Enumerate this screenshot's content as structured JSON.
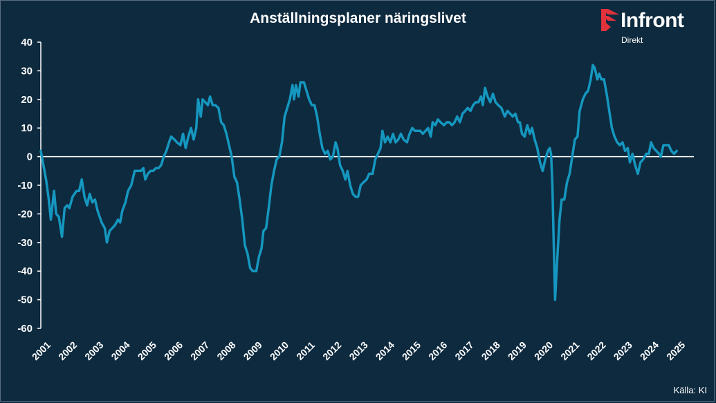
{
  "title": "Anställningsplaner näringslivet",
  "logo": {
    "word": "Infront",
    "sub": "Direkt",
    "icon": "infront-flag-icon",
    "accent": "#e2323c"
  },
  "source": "Källa:  KI",
  "colors": {
    "background": "#0e2a3f",
    "line": "#1597bf",
    "axis": "#ffffff",
    "text": "#ffffff"
  },
  "chart_data": {
    "type": "line",
    "title": "Anställningsplaner näringslivet",
    "xlabel": "",
    "ylabel": "",
    "ylim": [
      -60,
      40
    ],
    "xlim": [
      2001,
      2025.7
    ],
    "yticks": [
      40,
      30,
      20,
      10,
      0,
      -10,
      -20,
      -30,
      -40,
      -50,
      -60
    ],
    "xticks": [
      "2001",
      "2002",
      "2003",
      "2004",
      "2005",
      "2006",
      "2007",
      "2008",
      "2009",
      "2010",
      "2011",
      "2012",
      "2013",
      "2014",
      "2015",
      "2016",
      "2017",
      "2018",
      "2019",
      "2020",
      "2021",
      "2022",
      "2023",
      "2024",
      "2025"
    ],
    "grid": false,
    "legend": "none",
    "series": [
      {
        "name": "",
        "points": [
          [
            2001.0,
            2
          ],
          [
            2001.1,
            -3
          ],
          [
            2001.2,
            -8
          ],
          [
            2001.3,
            -15
          ],
          [
            2001.38,
            -22
          ],
          [
            2001.5,
            -12
          ],
          [
            2001.58,
            -20
          ],
          [
            2001.68,
            -21
          ],
          [
            2001.8,
            -28
          ],
          [
            2001.9,
            -18
          ],
          [
            2002.0,
            -17
          ],
          [
            2002.08,
            -18
          ],
          [
            2002.2,
            -14
          ],
          [
            2002.35,
            -12
          ],
          [
            2002.45,
            -12
          ],
          [
            2002.55,
            -8
          ],
          [
            2002.65,
            -14
          ],
          [
            2002.75,
            -17
          ],
          [
            2002.85,
            -13
          ],
          [
            2002.95,
            -16
          ],
          [
            2003.05,
            -15
          ],
          [
            2003.15,
            -19
          ],
          [
            2003.3,
            -23
          ],
          [
            2003.42,
            -25
          ],
          [
            2003.5,
            -30
          ],
          [
            2003.6,
            -26
          ],
          [
            2003.7,
            -25
          ],
          [
            2003.8,
            -24
          ],
          [
            2003.92,
            -22
          ],
          [
            2004.0,
            -23
          ],
          [
            2004.08,
            -19
          ],
          [
            2004.2,
            -16
          ],
          [
            2004.3,
            -12
          ],
          [
            2004.42,
            -10
          ],
          [
            2004.55,
            -5
          ],
          [
            2004.68,
            -5
          ],
          [
            2004.78,
            -5
          ],
          [
            2004.88,
            -4
          ],
          [
            2004.95,
            -8
          ],
          [
            2005.05,
            -6
          ],
          [
            2005.15,
            -5
          ],
          [
            2005.25,
            -5
          ],
          [
            2005.35,
            -4
          ],
          [
            2005.45,
            -4
          ],
          [
            2005.55,
            -3
          ],
          [
            2005.65,
            0
          ],
          [
            2005.75,
            2
          ],
          [
            2005.85,
            5
          ],
          [
            2005.93,
            7
          ],
          [
            2006.05,
            6
          ],
          [
            2006.15,
            5
          ],
          [
            2006.28,
            4
          ],
          [
            2006.38,
            8
          ],
          [
            2006.48,
            3
          ],
          [
            2006.58,
            7
          ],
          [
            2006.68,
            10
          ],
          [
            2006.78,
            6
          ],
          [
            2006.88,
            10
          ],
          [
            2006.95,
            20
          ],
          [
            2007.05,
            14
          ],
          [
            2007.12,
            20
          ],
          [
            2007.22,
            19
          ],
          [
            2007.32,
            18
          ],
          [
            2007.4,
            21
          ],
          [
            2007.5,
            18
          ],
          [
            2007.6,
            18
          ],
          [
            2007.72,
            17
          ],
          [
            2007.82,
            12
          ],
          [
            2007.92,
            11
          ],
          [
            2008.02,
            8
          ],
          [
            2008.12,
            4
          ],
          [
            2008.22,
            0
          ],
          [
            2008.32,
            -7
          ],
          [
            2008.42,
            -9
          ],
          [
            2008.52,
            -15
          ],
          [
            2008.62,
            -22
          ],
          [
            2008.72,
            -31
          ],
          [
            2008.82,
            -34
          ],
          [
            2008.92,
            -39
          ],
          [
            2009.02,
            -40
          ],
          [
            2009.15,
            -40
          ],
          [
            2009.25,
            -35
          ],
          [
            2009.35,
            -32
          ],
          [
            2009.42,
            -26
          ],
          [
            2009.52,
            -25
          ],
          [
            2009.62,
            -18
          ],
          [
            2009.72,
            -10
          ],
          [
            2009.82,
            -5
          ],
          [
            2009.92,
            -1
          ],
          [
            2010.02,
            0
          ],
          [
            2010.12,
            5
          ],
          [
            2010.22,
            14
          ],
          [
            2010.32,
            17
          ],
          [
            2010.42,
            20
          ],
          [
            2010.52,
            25
          ],
          [
            2010.58,
            20
          ],
          [
            2010.65,
            25
          ],
          [
            2010.75,
            21
          ],
          [
            2010.82,
            26
          ],
          [
            2010.95,
            26
          ],
          [
            2011.05,
            23
          ],
          [
            2011.15,
            20
          ],
          [
            2011.25,
            18
          ],
          [
            2011.35,
            18
          ],
          [
            2011.45,
            14
          ],
          [
            2011.55,
            8
          ],
          [
            2011.65,
            3
          ],
          [
            2011.75,
            1
          ],
          [
            2011.85,
            2
          ],
          [
            2011.95,
            -1
          ],
          [
            2012.05,
            0
          ],
          [
            2012.15,
            5
          ],
          [
            2012.22,
            3
          ],
          [
            2012.32,
            -3
          ],
          [
            2012.42,
            -5
          ],
          [
            2012.52,
            -8
          ],
          [
            2012.6,
            -5
          ],
          [
            2012.7,
            -10
          ],
          [
            2012.8,
            -13
          ],
          [
            2012.9,
            -14
          ],
          [
            2013.0,
            -14
          ],
          [
            2013.1,
            -10
          ],
          [
            2013.2,
            -9
          ],
          [
            2013.32,
            -8
          ],
          [
            2013.42,
            -6
          ],
          [
            2013.55,
            -6
          ],
          [
            2013.65,
            -1
          ],
          [
            2013.75,
            1
          ],
          [
            2013.85,
            3
          ],
          [
            2013.92,
            9
          ],
          [
            2014.02,
            5
          ],
          [
            2014.12,
            7
          ],
          [
            2014.22,
            5
          ],
          [
            2014.32,
            8
          ],
          [
            2014.42,
            5
          ],
          [
            2014.52,
            6
          ],
          [
            2014.62,
            8
          ],
          [
            2014.72,
            6
          ],
          [
            2014.85,
            5
          ],
          [
            2014.95,
            8
          ],
          [
            2015.05,
            10
          ],
          [
            2015.15,
            9
          ],
          [
            2015.25,
            9
          ],
          [
            2015.35,
            9
          ],
          [
            2015.45,
            8
          ],
          [
            2015.55,
            9
          ],
          [
            2015.65,
            10
          ],
          [
            2015.75,
            7
          ],
          [
            2015.82,
            12
          ],
          [
            2015.92,
            11
          ],
          [
            2016.02,
            13
          ],
          [
            2016.12,
            12
          ],
          [
            2016.25,
            11
          ],
          [
            2016.35,
            12
          ],
          [
            2016.45,
            12
          ],
          [
            2016.55,
            11
          ],
          [
            2016.65,
            12
          ],
          [
            2016.75,
            14
          ],
          [
            2016.85,
            12
          ],
          [
            2016.95,
            15
          ],
          [
            2017.05,
            16
          ],
          [
            2017.15,
            17
          ],
          [
            2017.25,
            16
          ],
          [
            2017.35,
            18
          ],
          [
            2017.45,
            19
          ],
          [
            2017.55,
            19
          ],
          [
            2017.65,
            21
          ],
          [
            2017.72,
            18
          ],
          [
            2017.8,
            24
          ],
          [
            2017.9,
            21
          ],
          [
            2018.0,
            19
          ],
          [
            2018.1,
            22
          ],
          [
            2018.2,
            19
          ],
          [
            2018.3,
            18
          ],
          [
            2018.42,
            17
          ],
          [
            2018.55,
            14
          ],
          [
            2018.65,
            16
          ],
          [
            2018.75,
            15
          ],
          [
            2018.85,
            14
          ],
          [
            2018.95,
            15
          ],
          [
            2019.05,
            12
          ],
          [
            2019.12,
            12
          ],
          [
            2019.2,
            8
          ],
          [
            2019.3,
            7
          ],
          [
            2019.4,
            11
          ],
          [
            2019.5,
            8
          ],
          [
            2019.58,
            10
          ],
          [
            2019.68,
            6
          ],
          [
            2019.78,
            3
          ],
          [
            2019.88,
            -2
          ],
          [
            2019.98,
            -5
          ],
          [
            2020.08,
            -1
          ],
          [
            2020.18,
            2
          ],
          [
            2020.25,
            3
          ],
          [
            2020.3,
            1
          ],
          [
            2020.35,
            -10
          ],
          [
            2020.4,
            -30
          ],
          [
            2020.45,
            -50
          ],
          [
            2020.52,
            -38
          ],
          [
            2020.62,
            -22
          ],
          [
            2020.7,
            -15
          ],
          [
            2020.8,
            -15
          ],
          [
            2020.9,
            -9
          ],
          [
            2021.0,
            -6
          ],
          [
            2021.1,
            0
          ],
          [
            2021.2,
            6
          ],
          [
            2021.3,
            7
          ],
          [
            2021.38,
            16
          ],
          [
            2021.5,
            20
          ],
          [
            2021.6,
            22
          ],
          [
            2021.7,
            23
          ],
          [
            2021.8,
            27
          ],
          [
            2021.88,
            32
          ],
          [
            2021.95,
            31
          ],
          [
            2022.05,
            27
          ],
          [
            2022.12,
            29
          ],
          [
            2022.2,
            27
          ],
          [
            2022.3,
            27
          ],
          [
            2022.4,
            22
          ],
          [
            2022.5,
            16
          ],
          [
            2022.6,
            10
          ],
          [
            2022.7,
            7
          ],
          [
            2022.8,
            5
          ],
          [
            2022.9,
            4
          ],
          [
            2023.0,
            5
          ],
          [
            2023.1,
            2
          ],
          [
            2023.2,
            3
          ],
          [
            2023.28,
            -2
          ],
          [
            2023.38,
            1
          ],
          [
            2023.48,
            -3
          ],
          [
            2023.58,
            -6
          ],
          [
            2023.68,
            -2
          ],
          [
            2023.78,
            -1
          ],
          [
            2023.9,
            1
          ],
          [
            2024.0,
            1
          ],
          [
            2024.08,
            5
          ],
          [
            2024.18,
            3
          ],
          [
            2024.28,
            2
          ],
          [
            2024.38,
            1
          ],
          [
            2024.45,
            0
          ],
          [
            2024.55,
            4
          ],
          [
            2024.65,
            4
          ],
          [
            2024.75,
            4
          ],
          [
            2024.85,
            2
          ],
          [
            2024.95,
            1
          ],
          [
            2025.05,
            2
          ]
        ]
      }
    ]
  }
}
